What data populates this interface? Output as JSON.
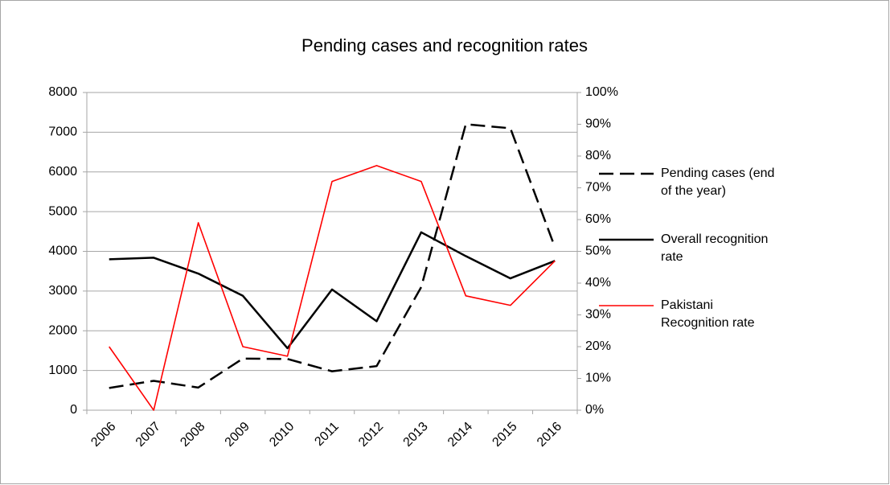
{
  "chart_data": {
    "type": "line",
    "title": "Pending cases and recognition rates",
    "categories": [
      "2006",
      "2007",
      "2008",
      "2009",
      "2010",
      "2011",
      "2012",
      "2013",
      "2014",
      "2015",
      "2016"
    ],
    "series": [
      {
        "name": "Pending cases (end of the year)",
        "color": "#000000",
        "dashed": true,
        "linewidth": 2.5,
        "values": [
          560,
          740,
          570,
          1300,
          1290,
          980,
          1110,
          3100,
          7200,
          7100,
          4100
        ]
      },
      {
        "name": "Overall recognition rate",
        "color": "#000000",
        "dashed": false,
        "linewidth": 2.5,
        "axis": "y2",
        "values": [
          47.5,
          48,
          43,
          36,
          19.5,
          38,
          28,
          56,
          48.5,
          41.5,
          47
        ]
      },
      {
        "name": "Pakistani Recognition rate",
        "color": "#ff0000",
        "dashed": false,
        "linewidth": 1.6,
        "axis": "y2",
        "values": [
          20,
          0,
          59,
          20,
          17,
          72,
          77,
          72,
          36,
          33,
          47
        ]
      }
    ],
    "ylim": [
      0,
      8000
    ],
    "yticks": [
      0,
      1000,
      2000,
      3000,
      4000,
      5000,
      6000,
      7000,
      8000
    ],
    "y2lim": [
      0,
      100
    ],
    "y2ticks": [
      {
        "value": 0,
        "label": "0%"
      },
      {
        "value": 10,
        "label": "10%"
      },
      {
        "value": 20,
        "label": "20%"
      },
      {
        "value": 30,
        "label": "30%"
      },
      {
        "value": 40,
        "label": "40%"
      },
      {
        "value": 50,
        "label": "50%"
      },
      {
        "value": 60,
        "label": "60%"
      },
      {
        "value": 70,
        "label": "70%"
      },
      {
        "value": 80,
        "label": "80%"
      },
      {
        "value": 90,
        "label": "90%"
      },
      {
        "value": 100,
        "label": "100%"
      }
    ],
    "grid": true,
    "legend": "right"
  }
}
